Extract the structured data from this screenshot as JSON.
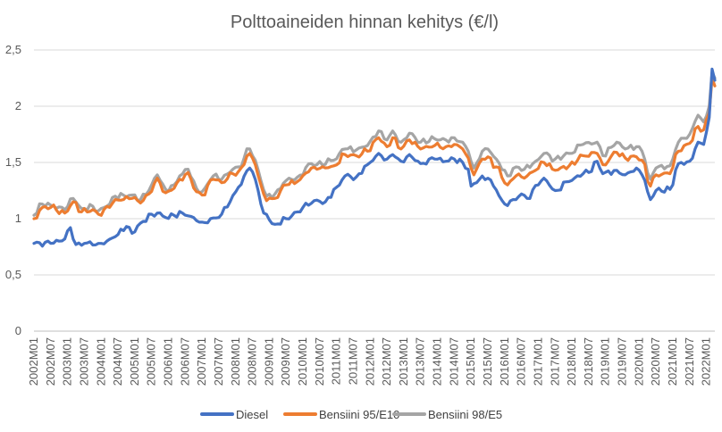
{
  "chart_data": {
    "type": "line",
    "title": "Polttoaineiden hinnan kehitys (€/l)",
    "xlabel": "",
    "ylabel": "",
    "ylim": [
      0,
      2.5
    ],
    "yticks": [
      "0",
      "0,5",
      "1",
      "1,5",
      "2",
      "2,5"
    ],
    "ytick_values": [
      0,
      0.5,
      1,
      1.5,
      2,
      2.5
    ],
    "grid": true,
    "legend_position": "bottom",
    "x_start": "2002M01",
    "x_end": "2022M04",
    "x_tick_labels": [
      "2002M01",
      "2002M07",
      "2003M01",
      "2003M07",
      "2004M01",
      "2004M07",
      "2005M01",
      "2005M07",
      "2006M01",
      "2006M07",
      "2007M01",
      "2007M07",
      "2008M01",
      "2008M07",
      "2009M01",
      "2009M07",
      "2010M01",
      "2010M07",
      "2011M01",
      "2011M07",
      "2012M01",
      "2012M07",
      "2013M01",
      "2013M07",
      "2014M01",
      "2014M07",
      "2015M01",
      "2015M07",
      "2016M01",
      "2016M07",
      "2017M01",
      "2017M07",
      "2018M01",
      "2018M07",
      "2019M01",
      "2019M07",
      "2020M01",
      "2020M07",
      "2021M01",
      "2021M07",
      "2022M01"
    ],
    "series": [
      {
        "name": "Diesel",
        "color": "#4472c4",
        "anchors": [
          [
            "2002M01",
            0.78
          ],
          [
            "2002M07",
            0.78
          ],
          [
            "2002M10",
            0.8
          ],
          [
            "2002M12",
            0.82
          ],
          [
            "2003M02",
            0.92
          ],
          [
            "2003M04",
            0.77
          ],
          [
            "2003M07",
            0.78
          ],
          [
            "2003M12",
            0.78
          ],
          [
            "2004M03",
            0.8
          ],
          [
            "2004M06",
            0.84
          ],
          [
            "2004M10",
            0.93
          ],
          [
            "2004M12",
            0.87
          ],
          [
            "2005M03",
            0.96
          ],
          [
            "2005M07",
            1.04
          ],
          [
            "2005M09",
            1.05
          ],
          [
            "2005M12",
            1.01
          ],
          [
            "2006M06",
            1.05
          ],
          [
            "2006M10",
            1.01
          ],
          [
            "2007M01",
            0.97
          ],
          [
            "2007M07",
            1.01
          ],
          [
            "2007M11",
            1.15
          ],
          [
            "2008M02",
            1.28
          ],
          [
            "2008M06",
            1.45
          ],
          [
            "2008M08",
            1.35
          ],
          [
            "2008M11",
            1.05
          ],
          [
            "2009M03",
            0.95
          ],
          [
            "2009M07",
            1.0
          ],
          [
            "2009M11",
            1.06
          ],
          [
            "2010M01",
            1.1
          ],
          [
            "2010M05",
            1.16
          ],
          [
            "2010M09",
            1.15
          ],
          [
            "2011M01",
            1.28
          ],
          [
            "2011M04",
            1.38
          ],
          [
            "2011M08",
            1.37
          ],
          [
            "2011M12",
            1.48
          ],
          [
            "2012M04",
            1.58
          ],
          [
            "2012M07",
            1.53
          ],
          [
            "2012M09",
            1.57
          ],
          [
            "2012M12",
            1.51
          ],
          [
            "2013M03",
            1.57
          ],
          [
            "2013M07",
            1.49
          ],
          [
            "2013M12",
            1.53
          ],
          [
            "2014M04",
            1.51
          ],
          [
            "2014M07",
            1.53
          ],
          [
            "2014M10",
            1.5
          ],
          [
            "2014M12",
            1.44
          ],
          [
            "2015M01",
            1.29
          ],
          [
            "2015M04",
            1.35
          ],
          [
            "2015M07",
            1.36
          ],
          [
            "2015M09",
            1.29
          ],
          [
            "2016M01",
            1.13
          ],
          [
            "2016M04",
            1.17
          ],
          [
            "2016M07",
            1.22
          ],
          [
            "2016M09",
            1.18
          ],
          [
            "2017M01",
            1.3
          ],
          [
            "2017M03",
            1.36
          ],
          [
            "2017M07",
            1.25
          ],
          [
            "2017M12",
            1.33
          ],
          [
            "2018M05",
            1.4
          ],
          [
            "2018M07",
            1.41
          ],
          [
            "2018M10",
            1.51
          ],
          [
            "2018M12",
            1.4
          ],
          [
            "2019M05",
            1.43
          ],
          [
            "2019M08",
            1.39
          ],
          [
            "2019M12",
            1.45
          ],
          [
            "2020M02",
            1.39
          ],
          [
            "2020M05",
            1.17
          ],
          [
            "2020M07",
            1.25
          ],
          [
            "2020M12",
            1.26
          ],
          [
            "2021M03",
            1.49
          ],
          [
            "2021M07",
            1.51
          ],
          [
            "2021M10",
            1.68
          ],
          [
            "2021M12",
            1.66
          ],
          [
            "2022M02",
            1.9
          ],
          [
            "2022M03",
            2.33
          ],
          [
            "2022M04",
            2.23
          ]
        ]
      },
      {
        "name": "Bensiini 95/E10",
        "color": "#ed7d31",
        "anchors": [
          [
            "2002M01",
            1.0
          ],
          [
            "2002M04",
            1.1
          ],
          [
            "2002M07",
            1.1
          ],
          [
            "2002M12",
            1.05
          ],
          [
            "2003M03",
            1.15
          ],
          [
            "2003M06",
            1.06
          ],
          [
            "2003M10",
            1.08
          ],
          [
            "2003M12",
            1.04
          ],
          [
            "2004M04",
            1.1
          ],
          [
            "2004M06",
            1.17
          ],
          [
            "2004M12",
            1.18
          ],
          [
            "2005M03",
            1.14
          ],
          [
            "2005M06",
            1.22
          ],
          [
            "2005M09",
            1.36
          ],
          [
            "2005M12",
            1.23
          ],
          [
            "2006M03",
            1.27
          ],
          [
            "2006M05",
            1.35
          ],
          [
            "2006M08",
            1.41
          ],
          [
            "2006M11",
            1.24
          ],
          [
            "2007M01",
            1.21
          ],
          [
            "2007M05",
            1.35
          ],
          [
            "2007M08",
            1.32
          ],
          [
            "2007M12",
            1.4
          ],
          [
            "2008M02",
            1.42
          ],
          [
            "2008M06",
            1.58
          ],
          [
            "2008M08",
            1.48
          ],
          [
            "2008M10",
            1.3
          ],
          [
            "2008M12",
            1.16
          ],
          [
            "2009M03",
            1.18
          ],
          [
            "2009M07",
            1.3
          ],
          [
            "2009M11",
            1.33
          ],
          [
            "2010M04",
            1.45
          ],
          [
            "2010M06",
            1.44
          ],
          [
            "2010M12",
            1.47
          ],
          [
            "2011M04",
            1.57
          ],
          [
            "2011M08",
            1.56
          ],
          [
            "2011M12",
            1.6
          ],
          [
            "2012M04",
            1.72
          ],
          [
            "2012M07",
            1.64
          ],
          [
            "2012M09",
            1.72
          ],
          [
            "2012M12",
            1.62
          ],
          [
            "2013M03",
            1.7
          ],
          [
            "2013M07",
            1.62
          ],
          [
            "2013M12",
            1.65
          ],
          [
            "2014M04",
            1.64
          ],
          [
            "2014M07",
            1.66
          ],
          [
            "2014M10",
            1.62
          ],
          [
            "2014M12",
            1.54
          ],
          [
            "2015M02",
            1.39
          ],
          [
            "2015M05",
            1.53
          ],
          [
            "2015M07",
            1.55
          ],
          [
            "2015M10",
            1.46
          ],
          [
            "2016M02",
            1.3
          ],
          [
            "2016M05",
            1.38
          ],
          [
            "2016M08",
            1.36
          ],
          [
            "2016M12",
            1.43
          ],
          [
            "2017M03",
            1.5
          ],
          [
            "2017M07",
            1.43
          ],
          [
            "2017M12",
            1.47
          ],
          [
            "2018M05",
            1.56
          ],
          [
            "2018M10",
            1.58
          ],
          [
            "2018M12",
            1.48
          ],
          [
            "2019M05",
            1.59
          ],
          [
            "2019M08",
            1.54
          ],
          [
            "2019M12",
            1.55
          ],
          [
            "2020M02",
            1.52
          ],
          [
            "2020M05",
            1.29
          ],
          [
            "2020M07",
            1.39
          ],
          [
            "2020M12",
            1.4
          ],
          [
            "2021M03",
            1.6
          ],
          [
            "2021M07",
            1.67
          ],
          [
            "2021M10",
            1.82
          ],
          [
            "2021M12",
            1.79
          ],
          [
            "2022M02",
            1.94
          ],
          [
            "2022M03",
            2.25
          ],
          [
            "2022M04",
            2.18
          ]
        ]
      },
      {
        "name": "Bensiini 98/E5",
        "color": "#a5a5a5",
        "anchors": [
          [
            "2002M01",
            1.03
          ],
          [
            "2002M04",
            1.13
          ],
          [
            "2002M07",
            1.12
          ],
          [
            "2002M12",
            1.08
          ],
          [
            "2003M03",
            1.18
          ],
          [
            "2003M06",
            1.09
          ],
          [
            "2003M10",
            1.11
          ],
          [
            "2003M12",
            1.07
          ],
          [
            "2004M04",
            1.13
          ],
          [
            "2004M06",
            1.2
          ],
          [
            "2004M12",
            1.21
          ],
          [
            "2005M03",
            1.17
          ],
          [
            "2005M06",
            1.25
          ],
          [
            "2005M09",
            1.39
          ],
          [
            "2005M12",
            1.26
          ],
          [
            "2006M03",
            1.3
          ],
          [
            "2006M05",
            1.38
          ],
          [
            "2006M08",
            1.44
          ],
          [
            "2006M11",
            1.27
          ],
          [
            "2007M01",
            1.24
          ],
          [
            "2007M05",
            1.38
          ],
          [
            "2007M08",
            1.35
          ],
          [
            "2007M12",
            1.44
          ],
          [
            "2008M02",
            1.46
          ],
          [
            "2008M06",
            1.62
          ],
          [
            "2008M08",
            1.52
          ],
          [
            "2008M10",
            1.34
          ],
          [
            "2008M12",
            1.2
          ],
          [
            "2009M03",
            1.22
          ],
          [
            "2009M07",
            1.34
          ],
          [
            "2009M11",
            1.37
          ],
          [
            "2010M04",
            1.49
          ],
          [
            "2010M06",
            1.48
          ],
          [
            "2010M12",
            1.52
          ],
          [
            "2011M04",
            1.62
          ],
          [
            "2011M08",
            1.61
          ],
          [
            "2011M12",
            1.65
          ],
          [
            "2012M04",
            1.78
          ],
          [
            "2012M07",
            1.7
          ],
          [
            "2012M09",
            1.78
          ],
          [
            "2012M12",
            1.68
          ],
          [
            "2013M03",
            1.76
          ],
          [
            "2013M07",
            1.68
          ],
          [
            "2013M12",
            1.71
          ],
          [
            "2014M04",
            1.7
          ],
          [
            "2014M07",
            1.72
          ],
          [
            "2014M10",
            1.68
          ],
          [
            "2014M12",
            1.6
          ],
          [
            "2015M02",
            1.45
          ],
          [
            "2015M05",
            1.6
          ],
          [
            "2015M07",
            1.62
          ],
          [
            "2015M10",
            1.53
          ],
          [
            "2016M02",
            1.38
          ],
          [
            "2016M05",
            1.46
          ],
          [
            "2016M08",
            1.44
          ],
          [
            "2016M12",
            1.51
          ],
          [
            "2017M03",
            1.58
          ],
          [
            "2017M07",
            1.53
          ],
          [
            "2017M12",
            1.58
          ],
          [
            "2018M05",
            1.66
          ],
          [
            "2018M10",
            1.68
          ],
          [
            "2018M12",
            1.56
          ],
          [
            "2019M05",
            1.68
          ],
          [
            "2019M08",
            1.62
          ],
          [
            "2019M12",
            1.64
          ],
          [
            "2020M02",
            1.6
          ],
          [
            "2020M05",
            1.35
          ],
          [
            "2020M07",
            1.45
          ],
          [
            "2020M12",
            1.47
          ],
          [
            "2021M03",
            1.68
          ],
          [
            "2021M07",
            1.75
          ],
          [
            "2021M10",
            1.92
          ],
          [
            "2021M12",
            1.86
          ],
          [
            "2022M02",
            2.0
          ],
          [
            "2022M03",
            2.3
          ],
          [
            "2022M04",
            2.25
          ]
        ]
      }
    ]
  }
}
